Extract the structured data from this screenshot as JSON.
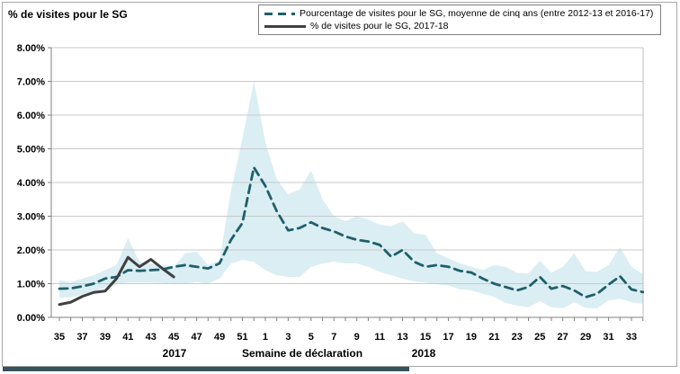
{
  "y_axis_title": "% de visites pour le SG",
  "legend": {
    "items": [
      {
        "label": "Pourcentage de visites pour le SG, moyenne de cinq ans (entre 2012-13 et 2016-17)",
        "style": "dashed",
        "color": "#1f5f6b"
      },
      {
        "label": "% de visites pour le SG, 2017-18",
        "style": "solid",
        "color": "#404040"
      }
    ]
  },
  "x_axis": {
    "caption": "Semaine de déclaration",
    "year_left": "2017",
    "year_right": "2018"
  },
  "colors": {
    "average_line": "#1f5f6b",
    "current_line": "#404040",
    "band_fill": "#daeef3",
    "gridline": "#c9c9c9",
    "axis_line": "#808080",
    "plot_border": "#bfbfbf"
  },
  "chart_data": {
    "type": "line",
    "title": "",
    "xlabel": "Semaine de déclaration",
    "ylabel": "% de visites pour le SG",
    "ylim": [
      0,
      8
    ],
    "grid": true,
    "legend_position": "top",
    "y_tick_labels": [
      "0.00%",
      "1.00%",
      "2.00%",
      "3.00%",
      "4.00%",
      "5.00%",
      "6.00%",
      "7.00%",
      "8.00%"
    ],
    "weeks": [
      35,
      36,
      37,
      38,
      39,
      40,
      41,
      42,
      43,
      44,
      45,
      46,
      47,
      48,
      49,
      50,
      51,
      52,
      1,
      2,
      3,
      4,
      5,
      6,
      7,
      8,
      9,
      10,
      11,
      12,
      13,
      14,
      15,
      16,
      17,
      18,
      19,
      20,
      21,
      22,
      23,
      24,
      25,
      26,
      27,
      28,
      29,
      30,
      31,
      32,
      33,
      34
    ],
    "x_tick_labels": [
      "35",
      "37",
      "39",
      "41",
      "43",
      "45",
      "47",
      "49",
      "51",
      "1",
      "3",
      "5",
      "7",
      "9",
      "11",
      "13",
      "15",
      "17",
      "19",
      "21",
      "23",
      "25",
      "27",
      "29",
      "31",
      "33"
    ],
    "series": [
      {
        "name": "Pourcentage de visites pour le SG, moyenne de cinq ans (entre 2012-13 et 2016-17)",
        "style": "dashed",
        "values": [
          0.85,
          0.86,
          0.92,
          1.0,
          1.15,
          1.2,
          1.4,
          1.38,
          1.4,
          1.42,
          1.5,
          1.55,
          1.5,
          1.45,
          1.6,
          2.3,
          2.8,
          4.45,
          3.9,
          3.15,
          2.58,
          2.65,
          2.82,
          2.65,
          2.55,
          2.4,
          2.3,
          2.25,
          2.15,
          1.8,
          2.0,
          1.65,
          1.5,
          1.55,
          1.5,
          1.38,
          1.33,
          1.15,
          1.0,
          0.9,
          0.8,
          0.9,
          1.2,
          0.85,
          0.93,
          0.8,
          0.6,
          0.7,
          0.97,
          1.22,
          0.83,
          0.75
        ]
      },
      {
        "name": "% de visites pour le SG, 2017-18",
        "style": "solid",
        "start_index": 0,
        "values": [
          0.38,
          0.45,
          0.62,
          0.74,
          0.78,
          1.15,
          1.78,
          1.5,
          1.72,
          1.45,
          1.2
        ]
      }
    ],
    "band": {
      "name": "plage min-max sur cinq ans (zone ombrée)",
      "upper": [
        1.1,
        1.05,
        1.15,
        1.25,
        1.4,
        1.55,
        2.35,
        1.65,
        1.6,
        1.55,
        1.5,
        1.9,
        1.95,
        1.55,
        1.7,
        3.75,
        5.3,
        7.0,
        5.2,
        4.1,
        3.65,
        3.8,
        4.35,
        3.5,
        3.0,
        2.85,
        3.0,
        2.9,
        2.75,
        2.7,
        2.85,
        2.5,
        2.45,
        1.9,
        1.75,
        1.6,
        1.5,
        1.4,
        1.55,
        1.5,
        1.32,
        1.3,
        1.68,
        1.32,
        1.5,
        1.9,
        1.37,
        1.35,
        1.55,
        2.08,
        1.5,
        1.28
      ],
      "lower": [
        0.58,
        0.6,
        0.67,
        0.75,
        0.89,
        0.98,
        1.03,
        1.03,
        1.03,
        1.02,
        0.98,
        1.0,
        1.05,
        1.0,
        1.15,
        1.6,
        1.7,
        1.65,
        1.4,
        1.25,
        1.2,
        1.2,
        1.5,
        1.6,
        1.65,
        1.6,
        1.6,
        1.5,
        1.35,
        1.25,
        1.15,
        1.07,
        1.03,
        0.98,
        0.95,
        0.83,
        0.8,
        0.7,
        0.61,
        0.43,
        0.35,
        0.3,
        0.48,
        0.3,
        0.27,
        0.45,
        0.28,
        0.27,
        0.5,
        0.55,
        0.45,
        0.4
      ]
    }
  }
}
